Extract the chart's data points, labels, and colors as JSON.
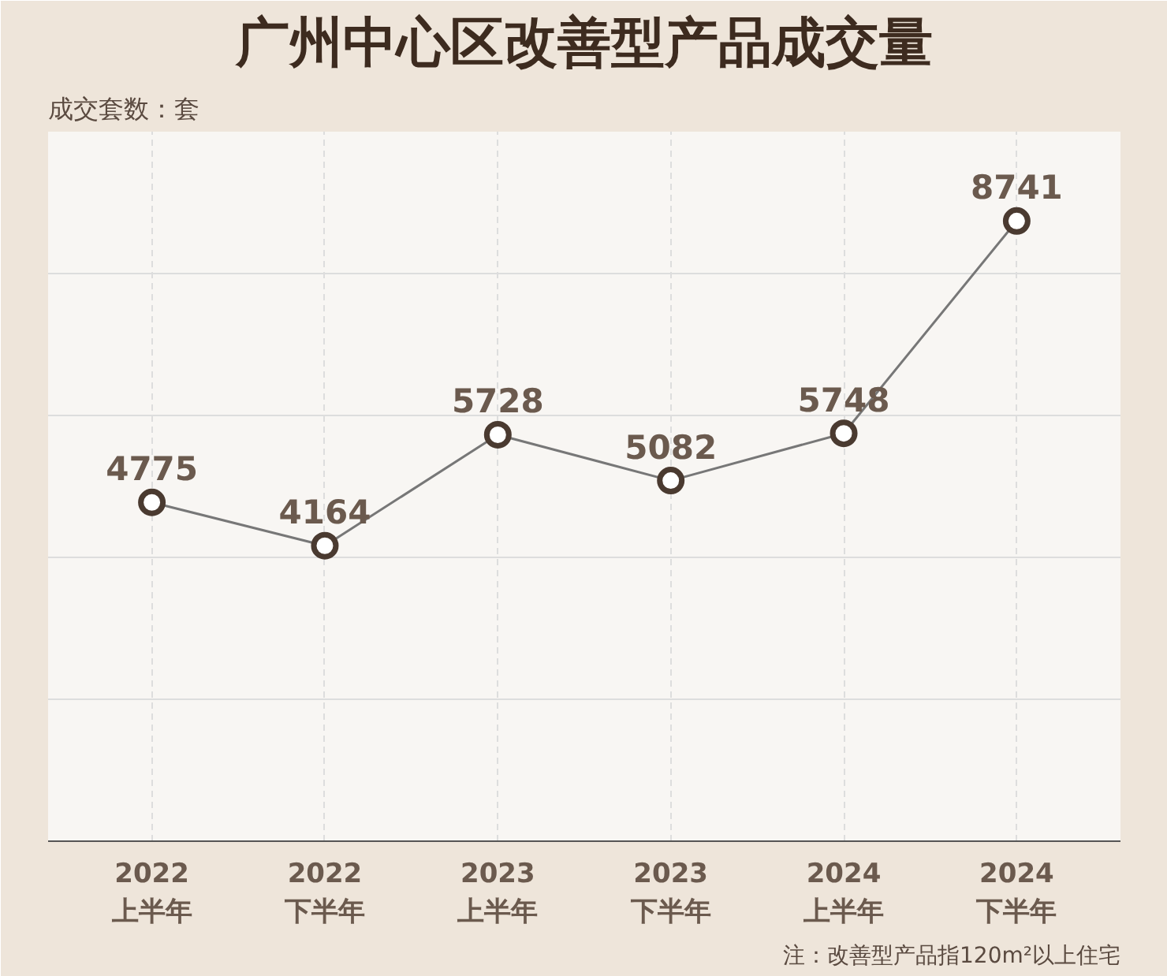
{
  "chart_data": {
    "type": "line",
    "title": "广州中心区改善型产品成交量",
    "ylabel": "成交套数：套",
    "categories": [
      "2022\n上半年",
      "2022\n下半年",
      "2023\n上半年",
      "2023\n下半年",
      "2024\n上半年",
      "2024\n下半年"
    ],
    "series": [
      {
        "color": "#4a3a30",
        "values": [
          4775,
          4164,
          5728,
          5082,
          5748,
          8741
        ]
      }
    ],
    "ylim": [
      0,
      10000
    ],
    "yticks": [
      {
        "value": 0,
        "label": null
      },
      {
        "value": 2000,
        "label": null
      },
      {
        "value": 4000,
        "label": null
      },
      {
        "value": 6000,
        "label": null
      },
      {
        "value": 8000,
        "label": null
      },
      {
        "value": 10000,
        "label": null
      }
    ],
    "tick_labels": "x",
    "grid": true,
    "marker": "circle",
    "line_style": "solid",
    "data_labels": true,
    "annotations": [
      "注：改善型产品指120m²以上住宅"
    ]
  }
}
